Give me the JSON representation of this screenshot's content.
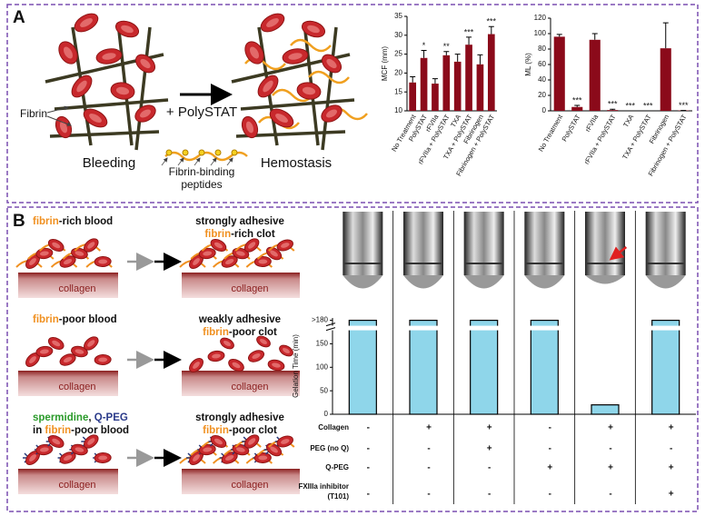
{
  "panel_a": {
    "label": "A",
    "fibrin_label": "Fibrin",
    "arrow_label": "+ PolySTAT",
    "left_caption": "Bleeding",
    "peptide_label": [
      "Fibrin-binding",
      "peptides"
    ],
    "right_caption": "Hemostasis"
  },
  "panel_b": {
    "label": "B",
    "rows": [
      {
        "blood": [
          [
            "fibrin",
            "-rich blood"
          ]
        ],
        "clot": [
          "strongly adhesive",
          [
            "fibrin",
            "-rich clot"
          ]
        ],
        "substrate": "collagen"
      },
      {
        "blood": [
          [
            "fibrin",
            "-poor blood"
          ]
        ],
        "clot": [
          "weakly adhesive",
          [
            "fibrin",
            "-poor clot"
          ]
        ],
        "substrate": "collagen"
      },
      {
        "blood": [
          [
            "spermidine",
            ", ",
            "Q-PEG"
          ],
          [
            "in ",
            "fibrin",
            "-poor blood"
          ]
        ],
        "clot": [
          "strongly adhesive",
          [
            "fibrin",
            "-poor clot"
          ]
        ],
        "substrate": "collagen"
      }
    ]
  },
  "chart_data": [
    {
      "type": "bar",
      "ylabel": "MCF (mm)",
      "color": "#8b0a1a",
      "categories": [
        "No Treatment",
        "PolySTAT",
        "rFVIIa",
        "rFVIIa + PolySTAT",
        "TXA",
        "TXA + PolySTAT",
        "Fibrinogen",
        "Fibrinogen + PolySTAT"
      ],
      "values": [
        17.5,
        24,
        17.2,
        24.7,
        23,
        27.5,
        22.3,
        30.3
      ],
      "errors": [
        1.5,
        2,
        1.3,
        1,
        2,
        2,
        2.5,
        2
      ],
      "annotations": [
        null,
        "*",
        null,
        "**",
        null,
        "***",
        null,
        "***"
      ],
      "ylim": [
        10,
        35
      ],
      "yticks": [
        10,
        15,
        20,
        25,
        30,
        35
      ]
    },
    {
      "type": "bar",
      "ylabel": "ML (%)",
      "color": "#8b0a1a",
      "categories": [
        "No Treatment",
        "PolySTAT",
        "rFVIIa",
        "rFVIIa + PolySTAT",
        "TXA",
        "TXA + PolySTAT",
        "Fibrinogen",
        "Fibrinogen + PolySTAT"
      ],
      "values": [
        96,
        5,
        92,
        1,
        0,
        0,
        81,
        0.5
      ],
      "errors": [
        3,
        2,
        8,
        1,
        0,
        0,
        33,
        0
      ],
      "annotations": [
        null,
        "***",
        null,
        "***",
        "***",
        "***",
        null,
        "***"
      ],
      "ylim": [
        0,
        120
      ],
      "yticks": [
        0,
        20,
        40,
        60,
        80,
        100,
        120
      ]
    },
    {
      "type": "bar",
      "ylabel": "Gelation Time (min)",
      "color": "#8fd6ea",
      "values": [
        200,
        200,
        200,
        200,
        20,
        200
      ],
      "ylim": [
        0,
        205
      ],
      "yticks": [
        0,
        50,
        100,
        150,
        {
          "value": 200,
          "label": ">180"
        }
      ],
      "conditions": [
        {
          "name": [
            "Collagen"
          ],
          "values": [
            "-",
            "+",
            "+",
            "-",
            "+",
            "+"
          ]
        },
        {
          "name": [
            "PEG (no Q)"
          ],
          "values": [
            "-",
            "-",
            "+",
            "-",
            "-",
            "-"
          ]
        },
        {
          "name": [
            "Q-PEG"
          ],
          "values": [
            "-",
            "-",
            "-",
            "+",
            "+",
            "+"
          ]
        },
        {
          "name": [
            "FXIIIa inhibitor",
            "(T101)"
          ],
          "values": [
            "-",
            "-",
            "-",
            "-",
            "-",
            "+"
          ]
        }
      ]
    }
  ]
}
